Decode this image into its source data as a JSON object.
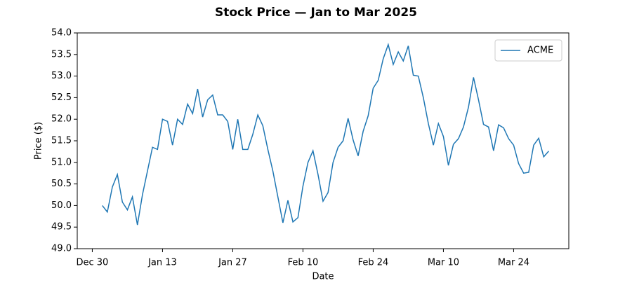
{
  "chart_data": {
    "type": "line",
    "title": "Stock Price — Jan to Mar 2025",
    "x_label": "Date",
    "y_label": "Price ($)",
    "x": [
      "Jan 1",
      "Jan 2",
      "Jan 3",
      "Jan 4",
      "Jan 5",
      "Jan 6",
      "Jan 7",
      "Jan 8",
      "Jan 9",
      "Jan 10",
      "Jan 11",
      "Jan 12",
      "Jan 13",
      "Jan 14",
      "Jan 15",
      "Jan 16",
      "Jan 17",
      "Jan 18",
      "Jan 19",
      "Jan 20",
      "Jan 21",
      "Jan 22",
      "Jan 23",
      "Jan 24",
      "Jan 25",
      "Jan 26",
      "Jan 27",
      "Jan 28",
      "Jan 29",
      "Jan 30",
      "Jan 31",
      "Feb 1",
      "Feb 2",
      "Feb 3",
      "Feb 4",
      "Feb 5",
      "Feb 6",
      "Feb 7",
      "Feb 8",
      "Feb 9",
      "Feb 10",
      "Feb 11",
      "Feb 12",
      "Feb 13",
      "Feb 14",
      "Feb 15",
      "Feb 16",
      "Feb 17",
      "Feb 18",
      "Feb 19",
      "Feb 20",
      "Feb 21",
      "Feb 22",
      "Feb 23",
      "Feb 24",
      "Feb 25",
      "Feb 26",
      "Feb 27",
      "Feb 28",
      "Mar 1",
      "Mar 2",
      "Mar 3",
      "Mar 4",
      "Mar 5",
      "Mar 6",
      "Mar 7",
      "Mar 8",
      "Mar 9",
      "Mar 10",
      "Mar 11",
      "Mar 12",
      "Mar 13",
      "Mar 14",
      "Mar 15",
      "Mar 16",
      "Mar 17",
      "Mar 18",
      "Mar 19",
      "Mar 20",
      "Mar 21",
      "Mar 22",
      "Mar 23",
      "Mar 24",
      "Mar 25",
      "Mar 26",
      "Mar 27",
      "Mar 28",
      "Mar 29",
      "Mar 30",
      "Mar 31"
    ],
    "series": [
      {
        "name": "ACME",
        "color": "#1f77b4",
        "values": [
          50.0,
          49.85,
          50.43,
          50.72,
          50.08,
          49.9,
          50.2,
          49.55,
          50.25,
          50.8,
          51.35,
          51.3,
          52.0,
          51.95,
          51.4,
          52.0,
          51.88,
          52.35,
          52.13,
          52.7,
          52.05,
          52.45,
          52.56,
          52.1,
          52.1,
          51.95,
          51.3,
          52.0,
          51.3,
          51.3,
          51.65,
          52.1,
          51.85,
          51.3,
          50.8,
          50.2,
          49.6,
          50.12,
          49.62,
          49.72,
          50.45,
          51.0,
          51.27,
          50.72,
          50.1,
          50.3,
          51.0,
          51.35,
          51.5,
          52.02,
          51.52,
          51.15,
          51.72,
          52.08,
          52.72,
          52.9,
          53.4,
          53.73,
          53.27,
          53.56,
          53.35,
          53.7,
          53.02,
          53.0,
          52.5,
          51.9,
          51.4,
          51.9,
          51.6,
          50.93,
          51.42,
          51.55,
          51.82,
          52.28,
          52.97,
          52.45,
          51.88,
          51.82,
          51.27,
          51.87,
          51.8,
          51.55,
          51.4,
          50.97,
          50.75,
          50.77,
          51.4,
          51.56,
          51.13,
          51.26
        ]
      }
    ],
    "xlim": [
      "Dec 27",
      "Apr 4"
    ],
    "xticks": [
      "Dec 30",
      "Jan 13",
      "Jan 27",
      "Feb 10",
      "Feb 24",
      "Mar 10",
      "Mar 24"
    ],
    "ylim": [
      49,
      54
    ],
    "yticks": [
      {
        "value": 49,
        "label": "49.0"
      },
      {
        "value": 49.5,
        "label": "49.5"
      },
      {
        "value": 50,
        "label": "50.0"
      },
      {
        "value": 50.5,
        "label": "50.5"
      },
      {
        "value": 51,
        "label": "51.0"
      },
      {
        "value": 51.5,
        "label": "51.5"
      },
      {
        "value": 52,
        "label": "52.0"
      },
      {
        "value": 52.5,
        "label": "52.5"
      },
      {
        "value": 53,
        "label": "53.0"
      },
      {
        "value": 53.5,
        "label": "53.5"
      },
      {
        "value": 54,
        "label": "54.0"
      }
    ],
    "grid": false,
    "legend": "upper right"
  }
}
